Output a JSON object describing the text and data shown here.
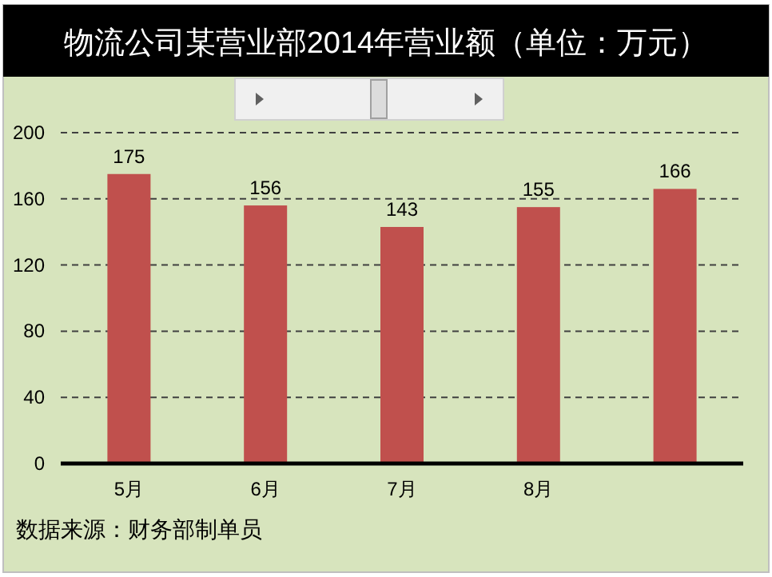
{
  "chart_data": {
    "type": "bar",
    "title": "物流公司某营业部2014年营业额（单位：万元）",
    "categories": [
      "5月",
      "6月",
      "7月",
      "8月",
      null
    ],
    "values": [
      175,
      156,
      143,
      155,
      166
    ],
    "color": "#c0504d",
    "ylim": [
      0,
      200
    ],
    "yticks": [
      0,
      40,
      80,
      120,
      160,
      200
    ],
    "grid": "y",
    "data_labels": true,
    "annotations": [
      "数据来源：财务部制单员"
    ]
  }
}
